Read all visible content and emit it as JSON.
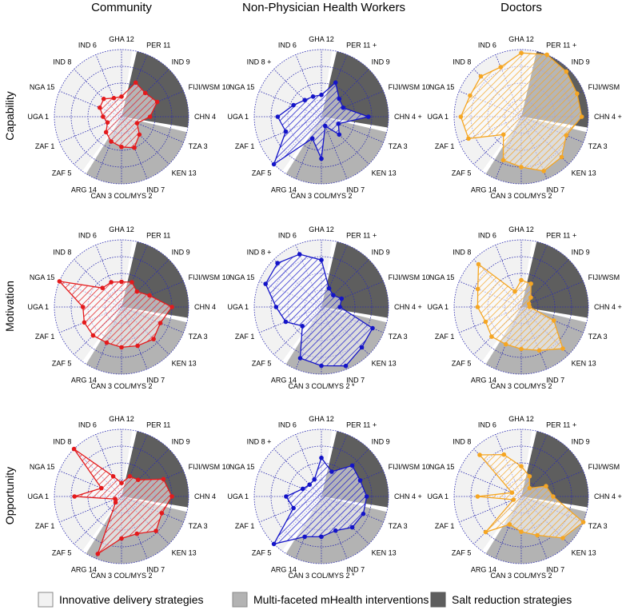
{
  "columns": [
    "Community",
    "Non-Physician Health Workers",
    "Doctors"
  ],
  "rows": [
    "Capability",
    "Motivation",
    "Opportunity"
  ],
  "spoke_labels": [
    "GHA 12",
    "PER 11",
    "IND 9",
    "FIJI/WSM 10",
    "CHN 4",
    "TZA 3",
    "KEN 13",
    "IND 7",
    "CAN 3 COL/MYS 2",
    "ARG 14",
    "ZAF 5",
    "ZAF 1",
    "UGA 1",
    "NGA 15",
    "IND 8",
    "IND 6"
  ],
  "legend": [
    {
      "label": "Innovative delivery strategies",
      "color": "#f2f2f2"
    },
    {
      "label": "Multi-faceted mHealth interventions",
      "color": "#b3b3b3"
    },
    {
      "label": "Salt reduction strategies",
      "color": "#5e5e5e"
    }
  ],
  "column_colors": [
    "#e41a1c",
    "#1414c8",
    "#f5a623"
  ],
  "chart_data": {
    "type": "radar",
    "spokes": [
      "GHA 12",
      "PER 11",
      "IND 9",
      "FIJI/WSM 10",
      "CHN 4",
      "TZA 3",
      "KEN 13",
      "IND 7",
      "CAN 3 COL/MYS 2",
      "ARG 14",
      "ZAF 5",
      "ZAF 1",
      "UGA 1",
      "NGA 15",
      "IND 8",
      "IND 6"
    ],
    "scale": [
      0,
      4
    ],
    "rings": 4,
    "sectors": [
      {
        "name": "Salt reduction strategies",
        "spokes": [
          "PER 11",
          "IND 9",
          "FIJI/WSM 10",
          "CHN 4"
        ]
      },
      {
        "name": "Multi-faceted mHealth interventions",
        "spokes": [
          "TZA 3",
          "KEN 13",
          "IND 7",
          "CAN 3 COL/MYS 2",
          "ARG 14"
        ]
      },
      {
        "name": "Innovative delivery strategies",
        "spokes": [
          "ZAF 5",
          "ZAF 1",
          "UGA 1",
          "NGA 15",
          "IND 8",
          "IND 6",
          "GHA 12"
        ]
      }
    ],
    "panels": [
      {
        "row": "Capability",
        "column": "Community",
        "values": [
          1.2,
          2.2,
          2.0,
          2.3,
          1.7,
          1.0,
          1.5,
          2.0,
          1.8,
          1.6,
          1.3,
          0.9,
          1.1,
          1.4,
          1.5,
          1.2
        ],
        "markers": {}
      },
      {
        "row": "Capability",
        "column": "Non-Physician Health Workers",
        "values": [
          1.3,
          2.2,
          1.5,
          1.4,
          2.8,
          1.1,
          1.5,
          0.6,
          2.5,
          1.4,
          4.0,
          2.3,
          2.6,
          1.8,
          1.4,
          1.3
        ],
        "markers": {
          "PER 11": "+",
          "IND 8": "+",
          "CHN 4": "+"
        }
      },
      {
        "row": "Capability",
        "column": "Doctors",
        "values": [
          3.8,
          4.0,
          3.8,
          3.6,
          3.6,
          2.9,
          3.4,
          3.5,
          3.0,
          2.8,
          1.5,
          3.4,
          3.6,
          3.3,
          3.4,
          3.2
        ],
        "markers": {
          "PER 11": "+",
          "CHN 4": "+"
        }
      },
      {
        "row": "Motivation",
        "column": "Community",
        "values": [
          1.5,
          1.6,
          1.3,
          1.8,
          3.0,
          2.5,
          2.7,
          2.5,
          2.4,
          2.3,
          2.4,
          2.4,
          2.3,
          4.0,
          1.6,
          1.6
        ],
        "markers": {}
      },
      {
        "row": "Motivation",
        "column": "Non-Physician Health Workers",
        "values": [
          2.8,
          1.2,
          1.0,
          1.3,
          1.1,
          3.3,
          3.4,
          3.8,
          3.5,
          3.3,
          1.6,
          2.3,
          2.7,
          3.6,
          3.7,
          3.4
        ],
        "markers": {
          "PER 11": "+",
          "IND 8": "+",
          "CHN 4": "+",
          "CAN 3 COL/MYS 2": "*"
        }
      },
      {
        "row": "Motivation",
        "column": "Doctors",
        "values": [
          1.6,
          1.5,
          0.8,
          0.5,
          0.5,
          2.1,
          3.5,
          2.8,
          2.5,
          2.4,
          2.5,
          2.3,
          2.6,
          2.8,
          3.6,
          1.0
        ],
        "markers": {
          "PER 11": "+",
          "CHN 4": "+"
        }
      },
      {
        "row": "Opportunity",
        "column": "Community",
        "values": [
          0.8,
          1.3,
          1.4,
          2.7,
          3.0,
          2.6,
          2.9,
          2.4,
          2.5,
          3.7,
          0.5,
          0.4,
          2.8,
          1.3,
          4.0,
          1.3
        ],
        "markers": {}
      },
      {
        "row": "Opportunity",
        "column": "Non-Physician Health Workers",
        "values": [
          2.3,
          1.6,
          2.6,
          2.5,
          2.7,
          2.7,
          2.6,
          2.2,
          2.4,
          2.6,
          4.0,
          1.8,
          2.1,
          1.2,
          1.0,
          1.1
        ],
        "markers": {
          "PER 11": "+",
          "IND 8": "+",
          "CHN 4": "+",
          "CAN 3 COL/MYS 2": "*"
        }
      },
      {
        "row": "Opportunity",
        "column": "Doctors",
        "values": [
          1.8,
          1.3,
          0.7,
          1.6,
          1.9,
          4.0,
          3.5,
          2.5,
          2.1,
          1.8,
          3.0,
          0.5,
          2.6,
          0.6,
          3.5,
          2.7
        ],
        "markers": {
          "PER 11": "+",
          "CHN 4": "+"
        }
      }
    ]
  }
}
